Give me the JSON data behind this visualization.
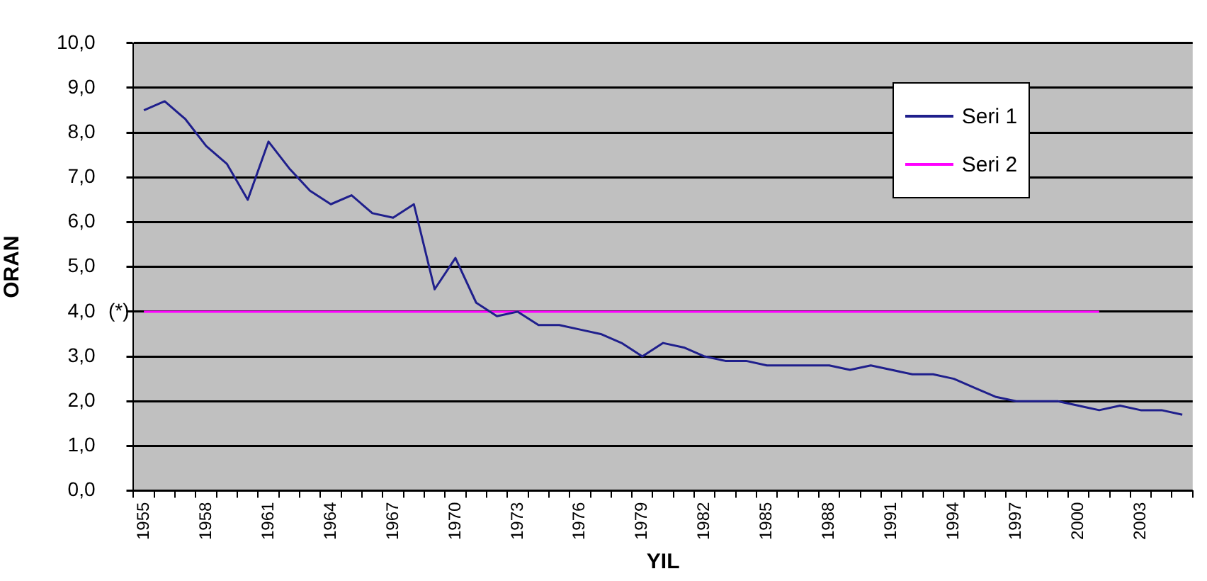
{
  "chart_data": {
    "type": "line",
    "xlabel": "YIL",
    "ylabel": "ORAN",
    "categories": [
      "1955",
      null,
      null,
      "1958",
      null,
      null,
      "1961",
      null,
      null,
      "1964",
      null,
      null,
      "1967",
      null,
      null,
      "1970",
      null,
      null,
      "1973",
      null,
      null,
      "1976",
      null,
      null,
      "1979",
      null,
      null,
      "1982",
      null,
      null,
      "1985",
      null,
      null,
      "1988",
      null,
      null,
      "1991",
      null,
      null,
      "1994",
      null,
      null,
      "1997",
      null,
      null,
      "2000",
      null,
      null,
      "2003",
      null,
      null
    ],
    "series": [
      {
        "name": "Seri 1",
        "color": "#1f1f8c",
        "values": [
          8.5,
          8.7,
          8.3,
          7.7,
          7.3,
          6.5,
          7.8,
          7.2,
          6.7,
          6.4,
          6.6,
          6.2,
          6.1,
          6.4,
          4.5,
          5.2,
          4.2,
          3.9,
          4.0,
          3.7,
          3.7,
          3.6,
          3.5,
          3.3,
          3.0,
          3.3,
          3.2,
          3.0,
          2.9,
          2.9,
          2.8,
          2.8,
          2.8,
          2.8,
          2.7,
          2.8,
          2.7,
          2.6,
          2.6,
          2.5,
          2.3,
          2.1,
          2.0,
          2.0,
          2.0,
          1.9,
          1.8,
          1.9,
          1.8,
          1.8,
          1.7
        ]
      },
      {
        "name": "Seri 2",
        "color": "#ff00ff",
        "values": [
          4,
          4,
          4,
          4,
          4,
          4,
          4,
          4,
          4,
          4,
          4,
          4,
          4,
          4,
          4,
          4,
          4,
          4,
          4,
          4,
          4,
          4,
          4,
          4,
          4,
          4,
          4,
          4,
          4,
          4,
          4,
          4,
          4,
          4,
          4,
          4,
          4,
          4,
          4,
          4,
          4,
          4,
          4,
          4,
          4,
          4,
          4,
          null,
          null,
          null,
          null
        ]
      }
    ],
    "ylim": [
      0,
      10
    ],
    "yticks": [
      {
        "value": 0,
        "label": "0,0"
      },
      {
        "value": 1,
        "label": "1,0"
      },
      {
        "value": 2,
        "label": "2,0"
      },
      {
        "value": 3,
        "label": "3,0"
      },
      {
        "value": 4,
        "label": "4,0"
      },
      {
        "value": 5,
        "label": "5,0"
      },
      {
        "value": 6,
        "label": "6,0"
      },
      {
        "value": 7,
        "label": "7,0"
      },
      {
        "value": 8,
        "label": "8,0"
      },
      {
        "value": 9,
        "label": "9,0"
      },
      {
        "value": 10,
        "label": "10,0"
      }
    ],
    "annotations": [
      "(*)"
    ],
    "grid": "y",
    "legend": "top right",
    "marker": "none",
    "line_style": "solid"
  }
}
